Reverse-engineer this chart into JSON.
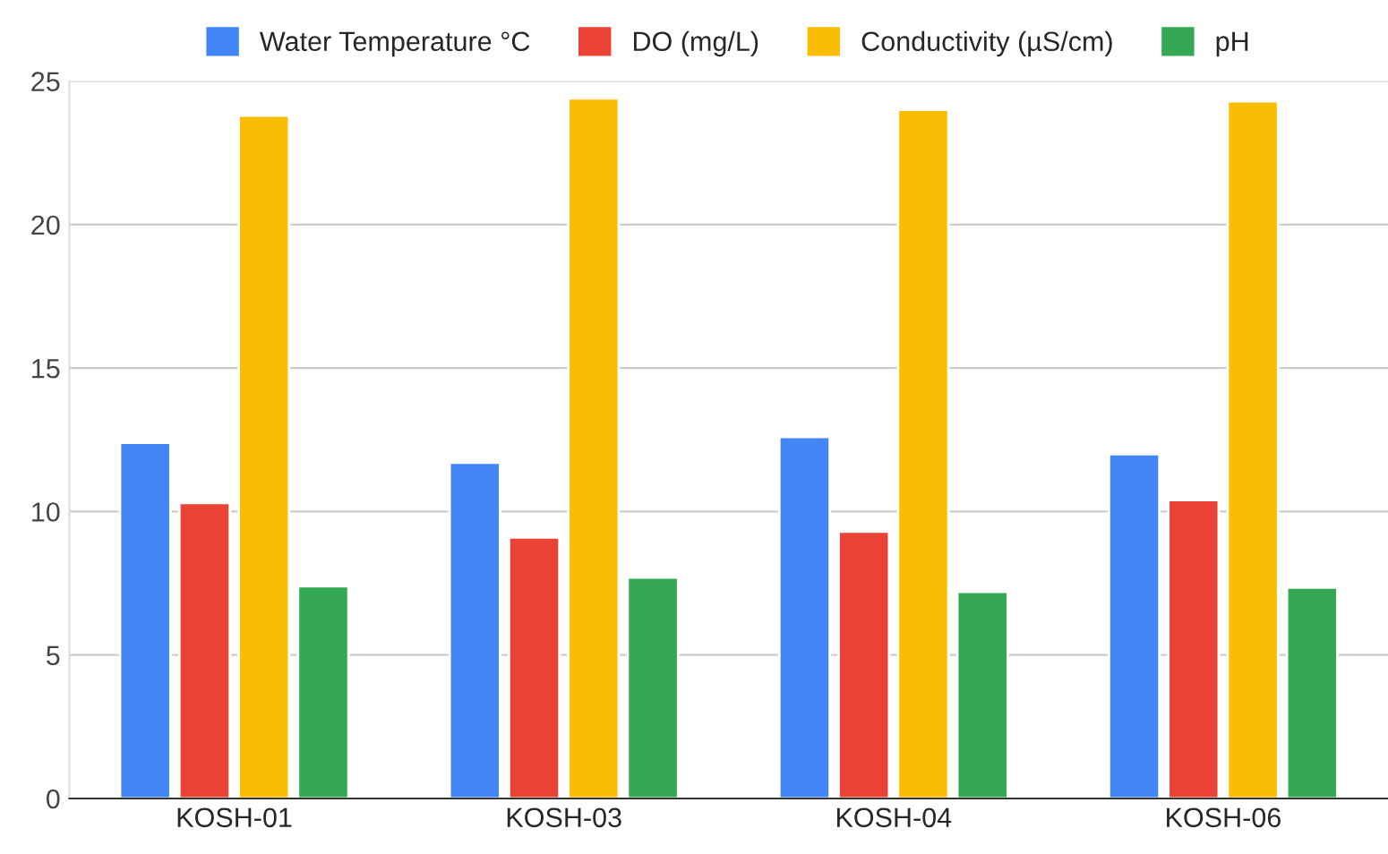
{
  "chart_data": {
    "type": "bar",
    "categories": [
      "KOSH-01",
      "KOSH-03",
      "KOSH-04",
      "KOSH-06"
    ],
    "series": [
      {
        "name": "Water Temperature °C",
        "color": "#4285f4",
        "values": [
          12.4,
          11.7,
          12.6,
          12.0
        ]
      },
      {
        "name": "DO (mg/L)",
        "color": "#ea4335",
        "values": [
          10.3,
          9.1,
          9.3,
          10.4
        ]
      },
      {
        "name": "Conductivity (µS/cm)",
        "color": "#fbbc04",
        "values": [
          23.8,
          24.4,
          24.0,
          24.3
        ]
      },
      {
        "name": "pH",
        "color": "#34a853",
        "values": [
          7.4,
          7.7,
          7.2,
          7.35
        ]
      }
    ],
    "ylim": [
      0,
      25
    ],
    "yticks": [
      0,
      5,
      10,
      15,
      20,
      25
    ],
    "grid": "y",
    "legend": "top"
  }
}
